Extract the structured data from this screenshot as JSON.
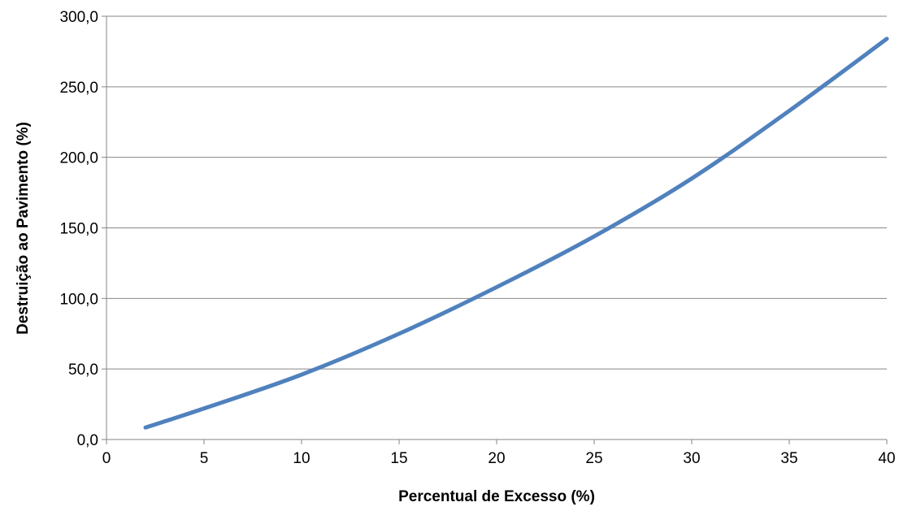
{
  "chart_data": {
    "type": "line",
    "title": "",
    "xlabel": "Percentual de Excesso (%)",
    "ylabel": "Destruição ao Pavimento (%)",
    "xlim": [
      0,
      40
    ],
    "ylim": [
      0,
      300
    ],
    "x_ticks": [
      "0",
      "5",
      "10",
      "15",
      "20",
      "25",
      "30",
      "35",
      "40"
    ],
    "y_ticks": [
      "0,0",
      "50,0",
      "100,0",
      "150,0",
      "200,0",
      "250,0",
      "300,0"
    ],
    "grid": "horizontal",
    "legend": "none",
    "series": [
      {
        "color": "#4F81BD",
        "x": [
          2,
          5,
          10,
          15,
          20,
          25,
          30,
          35,
          40
        ],
        "y": [
          8.5,
          22,
          46,
          75,
          108,
          144,
          185,
          233,
          284
        ]
      }
    ]
  },
  "colors": {
    "line": "#4F81BD",
    "grid": "#868686",
    "axis": "#868686"
  }
}
